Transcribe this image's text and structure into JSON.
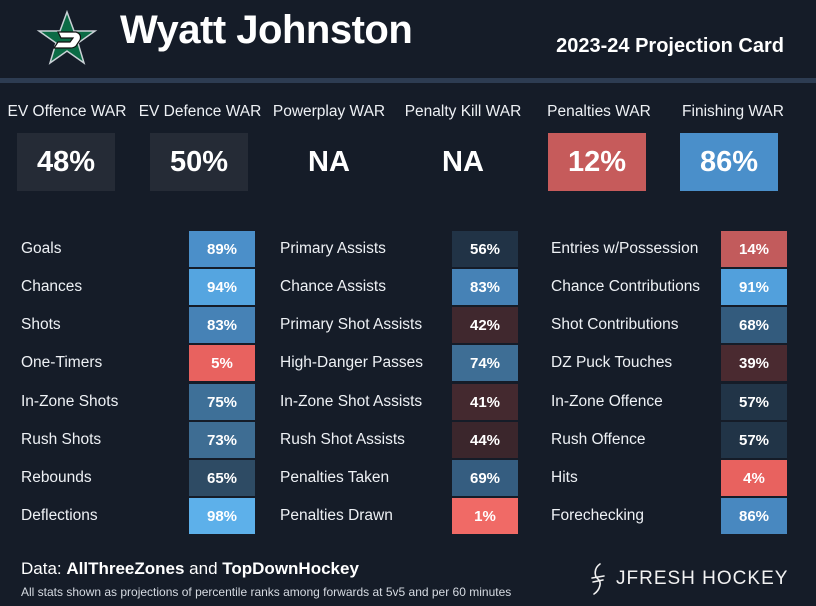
{
  "header": {
    "player_name": "Wyatt Johnston",
    "card_title": "2023-24 Projection Card",
    "logo_icon": "dallas-stars-logo-icon"
  },
  "war": [
    {
      "label": "EV Offence WAR",
      "value": "48%",
      "color": "#252b36"
    },
    {
      "label": "EV Defence WAR",
      "value": "50%",
      "color": "#252b36"
    },
    {
      "label": "Powerplay WAR",
      "value": "NA",
      "color": "#151c28"
    },
    {
      "label": "Penalty Kill WAR",
      "value": "NA",
      "color": "#151c28"
    },
    {
      "label": "Penalties WAR",
      "value": "12%",
      "color": "#c65b5b"
    },
    {
      "label": "Finishing WAR",
      "value": "86%",
      "color": "#4a8fca"
    }
  ],
  "stats": {
    "shooting": [
      {
        "label": "Goals",
        "value": "89%",
        "color": "#4b8fc9"
      },
      {
        "label": "Chances",
        "value": "94%",
        "color": "#55a5e0"
      },
      {
        "label": "Shots",
        "value": "83%",
        "color": "#4682b6"
      },
      {
        "label": "One-Timers",
        "value": "5%",
        "color": "#e8625f"
      },
      {
        "label": "In-Zone Shots",
        "value": "75%",
        "color": "#3e7098"
      },
      {
        "label": "Rush Shots",
        "value": "73%",
        "color": "#3e6d93"
      },
      {
        "label": "Rebounds",
        "value": "65%",
        "color": "#2e4b64"
      },
      {
        "label": "Deflections",
        "value": "98%",
        "color": "#5db0ea"
      }
    ],
    "passing": [
      {
        "label": "Primary Assists",
        "value": "56%",
        "color": "#213346"
      },
      {
        "label": "Chance Assists",
        "value": "83%",
        "color": "#4682b6"
      },
      {
        "label": "Primary Shot Assists",
        "value": "42%",
        "color": "#40282e"
      },
      {
        "label": "High-Danger Passes",
        "value": "74%",
        "color": "#3e6e95"
      },
      {
        "label": "In-Zone Shot Assists",
        "value": "41%",
        "color": "#44292f"
      },
      {
        "label": "Rush Shot Assists",
        "value": "44%",
        "color": "#3b262c"
      },
      {
        "label": "Penalties Taken",
        "value": "69%",
        "color": "#355d80"
      },
      {
        "label": "Penalties Drawn",
        "value": "1%",
        "color": "#f06a66"
      }
    ],
    "transition": [
      {
        "label": "Entries w/Possession",
        "value": "14%",
        "color": "#c25b5c"
      },
      {
        "label": "Chance Contributions",
        "value": "91%",
        "color": "#52a0dc"
      },
      {
        "label": "Shot Contributions",
        "value": "68%",
        "color": "#335b7d"
      },
      {
        "label": "DZ Puck Touches",
        "value": "39%",
        "color": "#4a2a30"
      },
      {
        "label": "In-Zone Offence",
        "value": "57%",
        "color": "#213447"
      },
      {
        "label": "Rush Offence",
        "value": "57%",
        "color": "#213447"
      },
      {
        "label": "Hits",
        "value": "4%",
        "color": "#e8625f"
      },
      {
        "label": "Forechecking",
        "value": "86%",
        "color": "#4888c0"
      }
    ]
  },
  "footer": {
    "source_prefix": "Data: ",
    "source_1": "AllThreeZones",
    "source_and": " and ",
    "source_2": "TopDownHockey",
    "note": "All stats shown as projections of percentile ranks among forwards at 5v5 and per 60 minutes",
    "brand": "JFRESH HOCKEY",
    "brand_icon": "jfresh-signature-icon"
  }
}
